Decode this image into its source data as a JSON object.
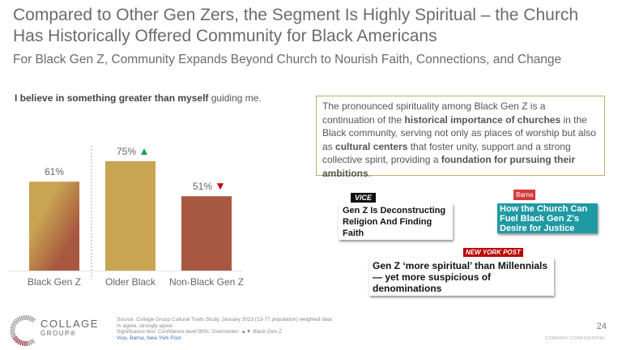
{
  "header": {
    "title": "Compared to Other Gen Zers, the Segment Is Highly Spiritual – the Church Has Historically Offered Community for Black Americans",
    "subtitle": "For Black Gen Z, Community Expands Beyond Church to Nourish Faith, Connections, and Change"
  },
  "question": {
    "bold": "I believe in something greater than myself",
    "rest": " guiding me."
  },
  "chart_data": {
    "type": "bar",
    "title": "I believe in something greater than myself guiding me.",
    "categories": [
      "Black Gen Z",
      "Older Black",
      "Non-Black Gen Z"
    ],
    "values": [
      61,
      75,
      51
    ],
    "labels": [
      "61%",
      "75%",
      "51%"
    ],
    "significance": [
      "none",
      "over",
      "under"
    ],
    "ylim": [
      0,
      100
    ],
    "colors": {
      "gold": "#c9a553",
      "rust": "#a85840",
      "up": "#1aa34a",
      "down": "#c00000"
    }
  },
  "callout": {
    "p1": "The pronounced spirituality among Black Gen Z is a continuation of the ",
    "b1": "historical importance of churches",
    "p2": " in the Black community, serving not only as places of worship but also as ",
    "b2": "cultural centers",
    "p3": " that foster unity, support and a strong collective spirit, providing a ",
    "b3": "foundation for pursuing their ambitions",
    "p4": "."
  },
  "clips": [
    {
      "source": "VICE",
      "headline": "Gen Z Is Deconstructing Religion And Finding Faith"
    },
    {
      "source": "Barna",
      "headline": "How the Church Can Fuel Black Gen Z's Desire for Justice"
    },
    {
      "source": "NEW YORK POST",
      "headline": "Gen Z ‘more spiritual’ than Millennials — yet more suspicious of denominations"
    }
  ],
  "footer": {
    "logo_line1": "COLLAGE",
    "logo_line2": "GROUP®",
    "source": "Source: Collage Group Cultural Traits Study, January 2023 (13-77 population) weighted data",
    "metric": "% agree, strongly agree",
    "significance": "Significance test: Confidence level 95%. Over/under: ▲▼ Black Gen Z",
    "links": "Vice, Barna, New York Post",
    "page": "24",
    "confidential": "COMPANY CONFIDENTIAL"
  }
}
